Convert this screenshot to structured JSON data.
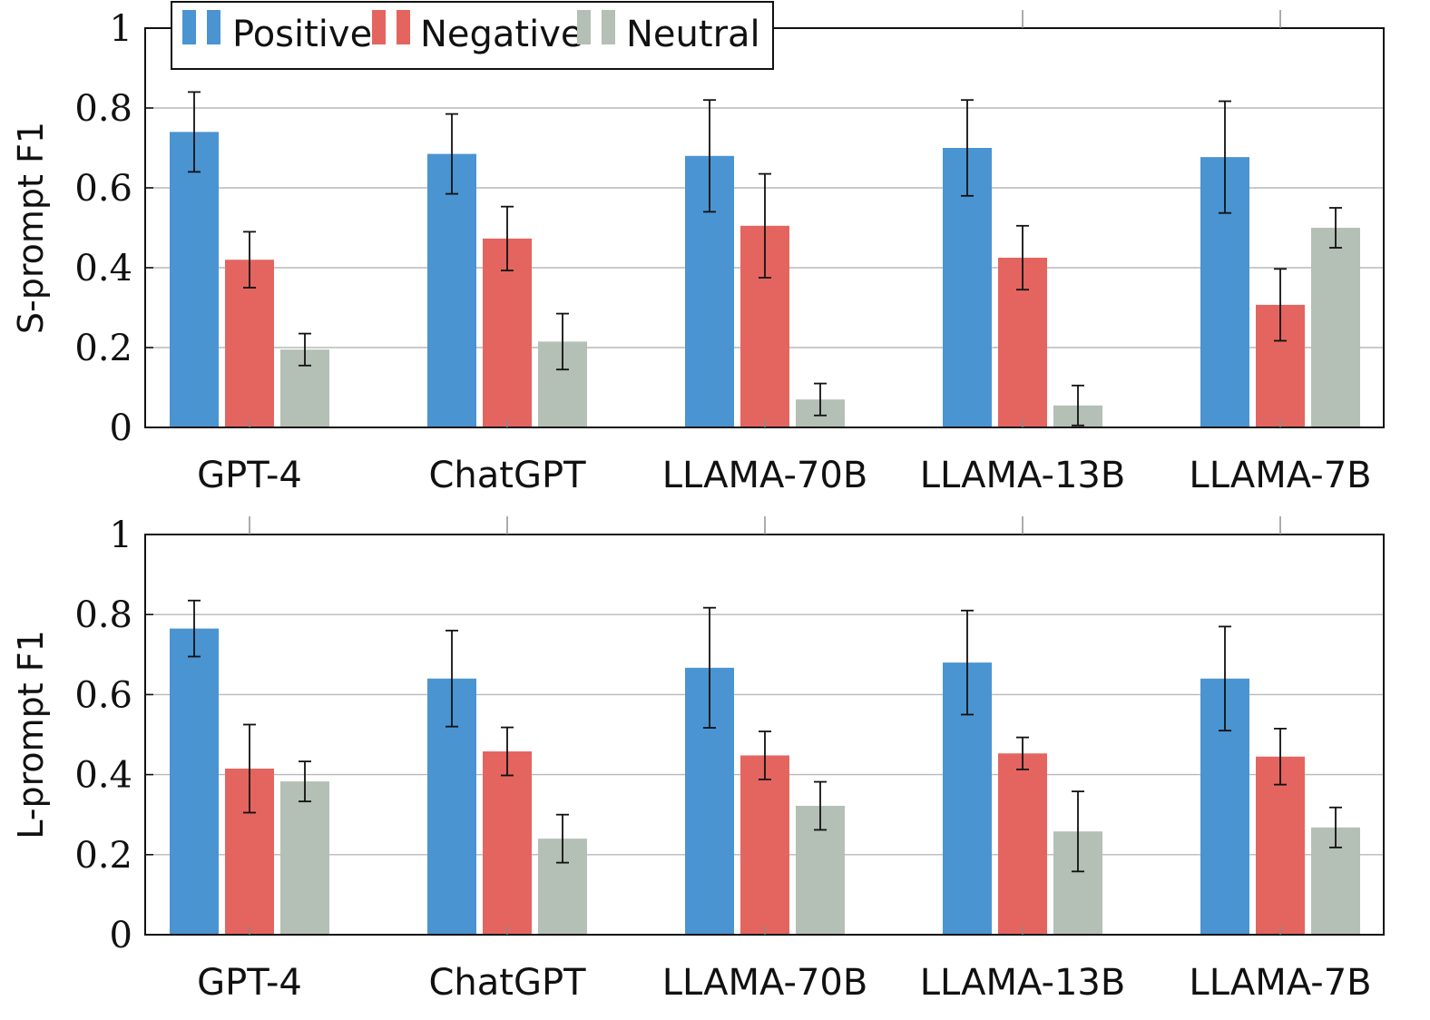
{
  "colors": {
    "positive": "#4a94d2",
    "negative": "#e4655f",
    "neutral": "#b4bfb5",
    "grid": "#b8b8b8",
    "axis": "#111111"
  },
  "legend": {
    "entries": [
      "Positive",
      "Negative",
      "Neutral"
    ],
    "placement": "top-left"
  },
  "chart_data": [
    {
      "type": "bar",
      "title": "",
      "xlabel": "",
      "ylabel": "S-prompt F1",
      "ylim": [
        0,
        1
      ],
      "yticks": [
        0,
        0.2,
        0.4,
        0.6,
        0.8,
        1
      ],
      "ytick_labels": [
        "0",
        "0.2",
        "0.4",
        "0.6",
        "0.8",
        "1"
      ],
      "grid": true,
      "categories": [
        "GPT-4",
        "ChatGPT",
        "LLAMA-70B",
        "LLAMA-13B",
        "LLAMA-7B"
      ],
      "series": [
        {
          "name": "Positive",
          "values": [
            0.74,
            0.685,
            0.68,
            0.7,
            0.677
          ],
          "errors": [
            0.1,
            0.1,
            0.14,
            0.12,
            0.14
          ]
        },
        {
          "name": "Negative",
          "values": [
            0.42,
            0.473,
            0.505,
            0.425,
            0.307
          ],
          "errors": [
            0.07,
            0.08,
            0.13,
            0.08,
            0.09
          ]
        },
        {
          "name": "Neutral",
          "values": [
            0.195,
            0.215,
            0.07,
            0.055,
            0.5
          ],
          "errors": [
            0.04,
            0.07,
            0.04,
            0.05,
            0.05
          ]
        }
      ]
    },
    {
      "type": "bar",
      "title": "",
      "xlabel": "",
      "ylabel": "L-prompt F1",
      "ylim": [
        0,
        1
      ],
      "yticks": [
        0,
        0.2,
        0.4,
        0.6,
        0.8,
        1
      ],
      "ytick_labels": [
        "0",
        "0.2",
        "0.4",
        "0.6",
        "0.8",
        "1"
      ],
      "grid": true,
      "categories": [
        "GPT-4",
        "ChatGPT",
        "LLAMA-70B",
        "LLAMA-13B",
        "LLAMA-7B"
      ],
      "series": [
        {
          "name": "Positive",
          "values": [
            0.765,
            0.64,
            0.667,
            0.68,
            0.64
          ],
          "errors": [
            0.07,
            0.12,
            0.15,
            0.13,
            0.13
          ]
        },
        {
          "name": "Negative",
          "values": [
            0.415,
            0.458,
            0.448,
            0.453,
            0.445
          ],
          "errors": [
            0.11,
            0.06,
            0.06,
            0.04,
            0.07
          ]
        },
        {
          "name": "Neutral",
          "values": [
            0.383,
            0.24,
            0.322,
            0.258,
            0.268
          ],
          "errors": [
            0.05,
            0.06,
            0.06,
            0.1,
            0.05
          ]
        }
      ]
    }
  ]
}
